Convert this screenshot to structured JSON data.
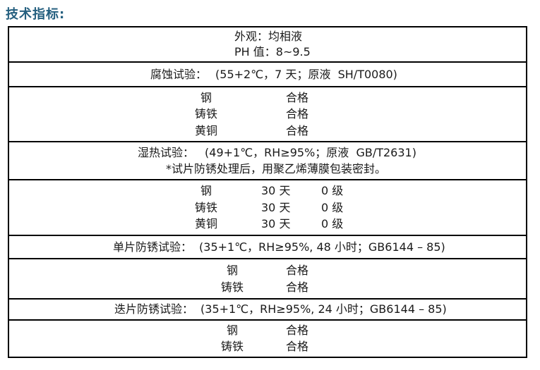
{
  "page": {
    "title": "技术指标:"
  },
  "colors": {
    "title_blue": "#245F7F",
    "border": "#000000",
    "text": "#1a1a1a"
  },
  "table": {
    "appearance": {
      "line1": "外观：均相液",
      "line2": "PH 值：8~9.5"
    },
    "corrosion": {
      "label": "腐蚀试验：",
      "conditions": "(55+2℃，7 天；原液  SH/T0080)",
      "results": [
        {
          "material": "钢",
          "result": "合格"
        },
        {
          "material": "铸铁",
          "result": "合格"
        },
        {
          "material": "黄铜",
          "result": "合格"
        }
      ]
    },
    "damp_heat": {
      "label": "湿热试验：",
      "conditions": "(49+1℃，RH≥95%；原液  GB/T2631)",
      "note": "*试片防锈处理后，用聚乙烯薄膜包装密封。",
      "results": [
        {
          "material": "钢",
          "duration": "30 天",
          "result": "0 级"
        },
        {
          "material": "铸铁",
          "duration": "30 天",
          "result": "0 级"
        },
        {
          "material": "黄铜",
          "duration": "30 天",
          "result": "0 级"
        }
      ]
    },
    "single_sheet": {
      "label": "单片防锈试验：",
      "conditions": "(35+1℃，RH≥95%, 48 小时；GB6144 – 85)",
      "results": [
        {
          "material": "钢",
          "result": "合格"
        },
        {
          "material": "铸铁",
          "result": "合格"
        }
      ]
    },
    "stacked_sheet": {
      "label": "迭片防锈试验：",
      "conditions": "(35+1℃，RH≥95%, 24 小时；GB6144 – 85)",
      "results": [
        {
          "material": "钢",
          "result": "合格"
        },
        {
          "material": "铸铁",
          "result": "合格"
        }
      ]
    }
  }
}
